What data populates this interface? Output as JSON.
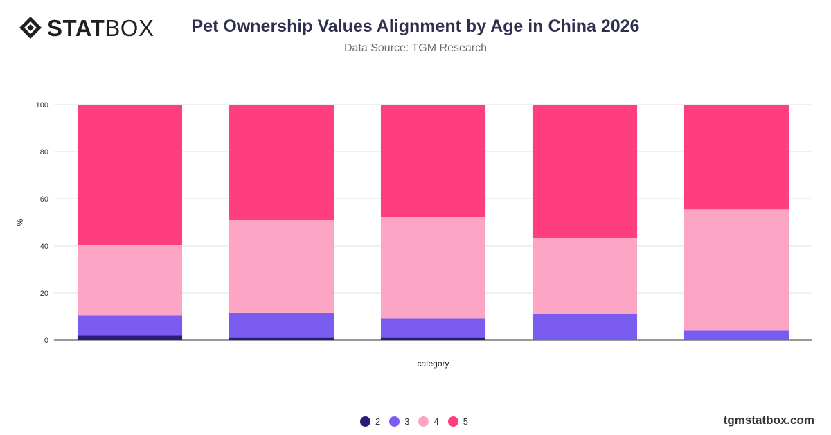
{
  "header": {
    "logo_bold": "STAT",
    "logo_light": "BOX",
    "title": "Pet Ownership Values Alignment by Age in China 2026",
    "subtitle": "Data Source: TGM Research"
  },
  "footer": {
    "site": "tgmstatbox.com"
  },
  "chart_data": {
    "type": "bar",
    "stacked": true,
    "title": "Pet Ownership Values Alignment by Age in China 2026",
    "subtitle": "Data Source: TGM Research",
    "xlabel": "category",
    "ylabel": "%",
    "ylim": [
      0,
      100
    ],
    "yticks": [
      0,
      20,
      40,
      60,
      80,
      100
    ],
    "grid": true,
    "legend_position": "bottom",
    "categories": [
      "",
      "",
      "",
      "",
      ""
    ],
    "series": [
      {
        "name": "2",
        "color": "#2e1a78",
        "values": [
          2,
          1,
          1,
          0,
          0
        ]
      },
      {
        "name": "3",
        "color": "#7b5cf0",
        "values": [
          8.5,
          10.5,
          8.3,
          11,
          4
        ]
      },
      {
        "name": "4",
        "color": "#fca5c5",
        "values": [
          30,
          39.5,
          43,
          32.5,
          51.5
        ]
      },
      {
        "name": "5",
        "color": "#ff3e80",
        "values": [
          59.5,
          49,
          47.7,
          56.5,
          44.5
        ]
      }
    ]
  }
}
